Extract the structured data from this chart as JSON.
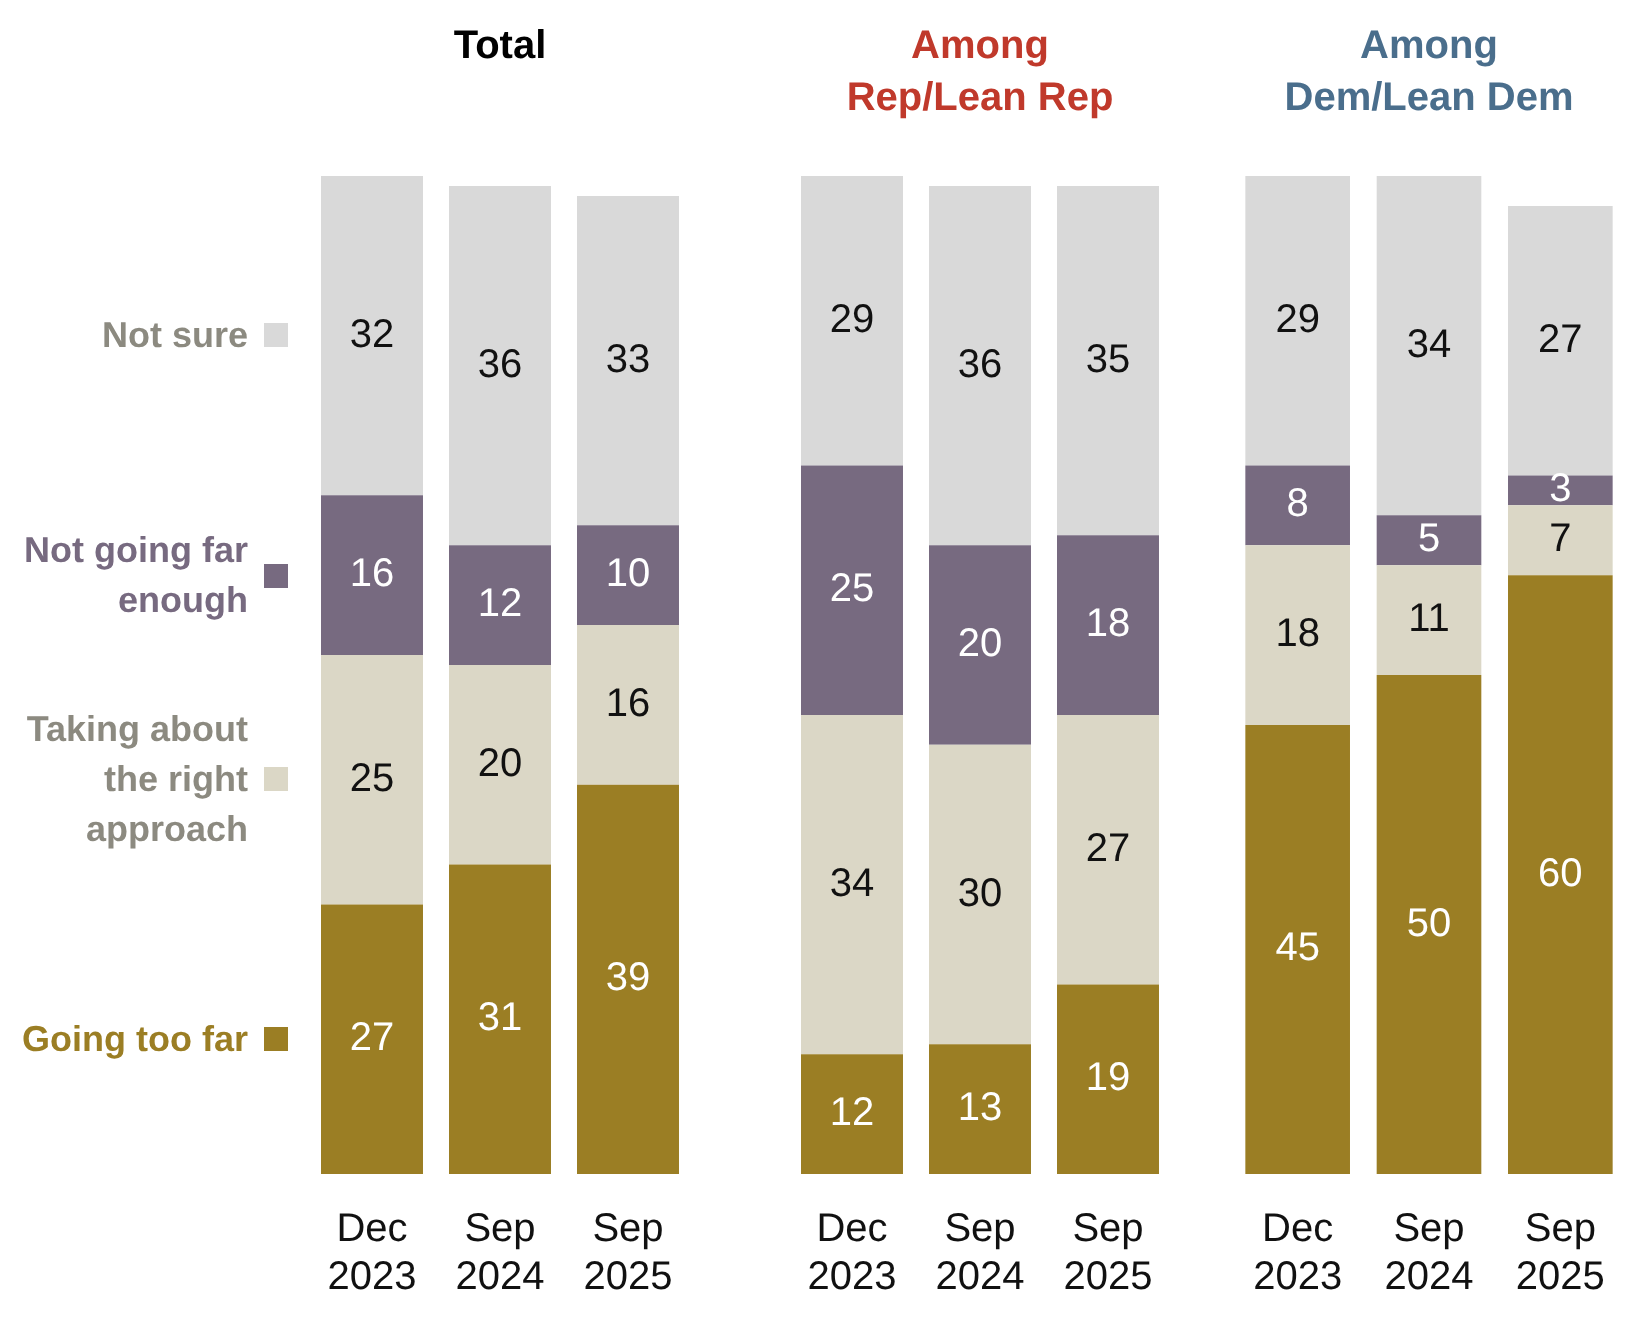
{
  "chart_data": [
    {
      "type": "bar",
      "title": "Total",
      "stacked": true,
      "data_labels": true,
      "legend": "left",
      "categories": [
        "Dec 2023",
        "Sep 2024",
        "Sep 2025"
      ],
      "series": [
        {
          "name": "Going too far",
          "color": "#9b7e24",
          "values": [
            27,
            31,
            39
          ]
        },
        {
          "name": "Taking about the right approach",
          "color": "#dbd7c6",
          "values": [
            25,
            20,
            16
          ]
        },
        {
          "name": "Not going far enough",
          "color": "#776a80",
          "values": [
            16,
            12,
            10
          ]
        },
        {
          "name": "Not sure",
          "color": "#d9d9d9",
          "values": [
            32,
            36,
            33
          ]
        }
      ]
    },
    {
      "type": "bar",
      "title": "Among Rep/Lean Rep",
      "stacked": true,
      "data_labels": true,
      "categories": [
        "Dec 2023",
        "Sep 2024",
        "Sep 2025"
      ],
      "series": [
        {
          "color": "#9b7e24",
          "values": [
            12,
            13,
            19
          ]
        },
        {
          "color": "#dbd7c6",
          "values": [
            34,
            30,
            27
          ]
        },
        {
          "color": "#776a80",
          "values": [
            25,
            20,
            18
          ]
        },
        {
          "color": "#d9d9d9",
          "values": [
            29,
            36,
            35
          ]
        }
      ]
    },
    {
      "type": "bar",
      "title": "Among Dem/Lean Dem",
      "stacked": true,
      "data_labels": true,
      "categories": [
        "Dec 2023",
        "Sep 2024",
        "Sep 2025"
      ],
      "series": [
        {
          "color": "#9b7e24",
          "values": [
            45,
            50,
            60
          ]
        },
        {
          "color": "#dbd7c6",
          "values": [
            18,
            11,
            7
          ]
        },
        {
          "color": "#776a80",
          "values": [
            8,
            5,
            3
          ]
        },
        {
          "color": "#d9d9d9",
          "values": [
            29,
            34,
            27
          ]
        }
      ]
    }
  ]
}
